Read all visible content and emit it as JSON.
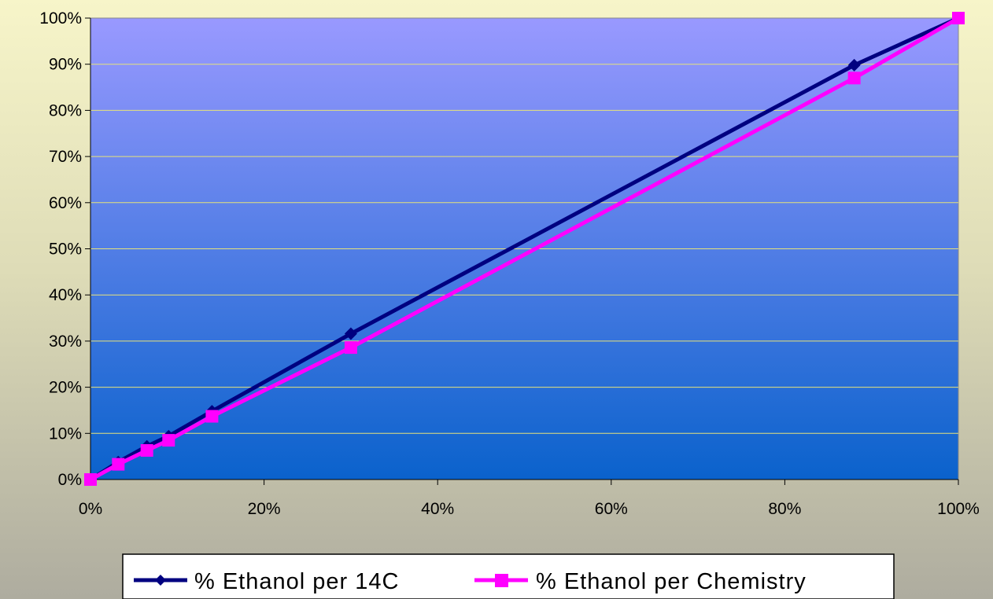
{
  "chart_data": {
    "type": "line",
    "title": "",
    "xlabel": "",
    "ylabel": "",
    "xlim": [
      0,
      100
    ],
    "ylim": [
      0,
      100
    ],
    "x_ticks": [
      "0%",
      "20%",
      "40%",
      "60%",
      "80%",
      "100%"
    ],
    "y_ticks": [
      "0%",
      "10%",
      "20%",
      "30%",
      "40%",
      "50%",
      "60%",
      "70%",
      "80%",
      "90%",
      "100%"
    ],
    "grid": "horizontal",
    "legend_position": "bottom",
    "series": [
      {
        "name": "% Ethanol per 14C",
        "color": "#000080",
        "marker": "diamond",
        "points": [
          [
            0,
            0
          ],
          [
            3.2,
            3.8
          ],
          [
            6.5,
            7.2
          ],
          [
            9,
            9.4
          ],
          [
            14,
            14.8
          ],
          [
            30,
            31.6
          ],
          [
            88,
            89.8
          ],
          [
            100,
            100
          ]
        ]
      },
      {
        "name": "% Ethanol per Chemistry",
        "color": "#ff00ff",
        "marker": "square",
        "points": [
          [
            0,
            0
          ],
          [
            3.2,
            3.3
          ],
          [
            6.5,
            6.3
          ],
          [
            9,
            8.5
          ],
          [
            14,
            13.7
          ],
          [
            30,
            28.6
          ],
          [
            88,
            87
          ],
          [
            100,
            100
          ]
        ]
      }
    ],
    "plot_background": {
      "top": "#9999ff",
      "bottom": "#0a62cc"
    },
    "gridline_color": "#e6e27a"
  }
}
